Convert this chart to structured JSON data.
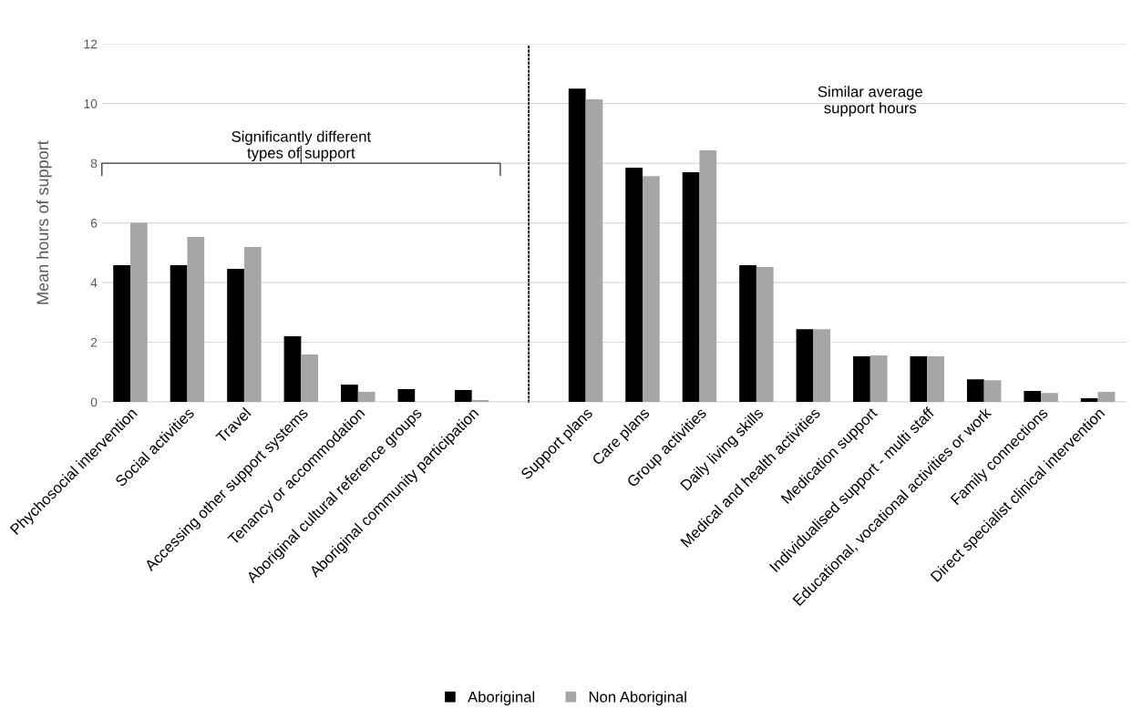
{
  "chart_data": [
    {
      "type": "bar",
      "ylabel": "Mean hours of support",
      "categories": [
        "Phychosocial intervention",
        "Social activities",
        "Travel",
        "Accessing other support systems",
        "Tenancy or accommodation",
        "Aboriginal cultural reference groups",
        "Aboriginal community participation"
      ],
      "series": [
        {
          "name": "Aboriginal",
          "color": "#000000",
          "values": [
            4.58,
            4.58,
            4.46,
            2.2,
            0.58,
            0.43,
            0.4
          ]
        },
        {
          "name": "Non Aboriginal",
          "color": "#a6a6a6",
          "values": [
            6.0,
            5.53,
            5.19,
            1.59,
            0.34,
            0,
            0.06
          ]
        }
      ],
      "ylim": [
        0,
        12
      ],
      "yticks": [
        0,
        2,
        4,
        6,
        8,
        10,
        12
      ],
      "grid": "y",
      "legend": "bottom",
      "annotations": [
        "Significantly different\ntypes of support"
      ]
    },
    {
      "type": "bar",
      "categories": [
        "Support plans",
        "Care plans",
        "Group activities",
        "Daily living skills",
        "Medical and health activities",
        "Medication support",
        "Individualised support - multi staff",
        "Educational, vocational activities or work",
        "Family connections",
        "Direct specialist clinical intervention"
      ],
      "series": [
        {
          "color": "#000000",
          "values": [
            10.5,
            7.85,
            7.7,
            4.58,
            2.44,
            1.53,
            1.53,
            0.76,
            0.37,
            0.12
          ]
        },
        {
          "color": "#a6a6a6",
          "values": [
            10.14,
            7.57,
            8.43,
            4.52,
            2.44,
            1.56,
            1.53,
            0.73,
            0.3,
            0.34
          ]
        }
      ],
      "ylim": [
        0,
        12
      ],
      "yticks": [
        0,
        2,
        4,
        6,
        8,
        10,
        12
      ],
      "grid": "y",
      "tick_labels": "x",
      "annotations": [
        "Similar average\nsupport hours"
      ]
    }
  ]
}
